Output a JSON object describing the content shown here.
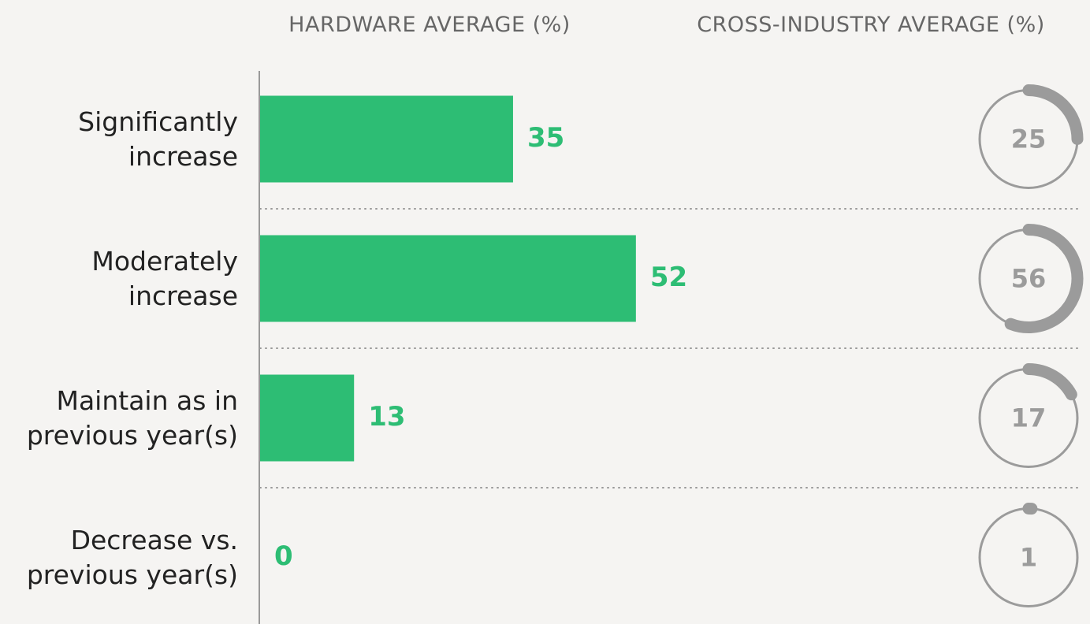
{
  "chart_data": {
    "type": "bar",
    "categories": [
      "Significantly increase",
      "Moderately increase",
      "Maintain as in previous year(s)",
      "Decrease vs. previous year(s)"
    ],
    "series": [
      {
        "name": "HARDWARE AVERAGE (%)",
        "color": "#2dbd74",
        "values": [
          35,
          52,
          13,
          0
        ]
      },
      {
        "name": "CROSS-INDUSTRY AVERAGE (%)",
        "color": "#9b9b9b",
        "values": [
          25,
          56,
          17,
          1
        ]
      }
    ],
    "xlim": [
      0,
      100
    ]
  }
}
